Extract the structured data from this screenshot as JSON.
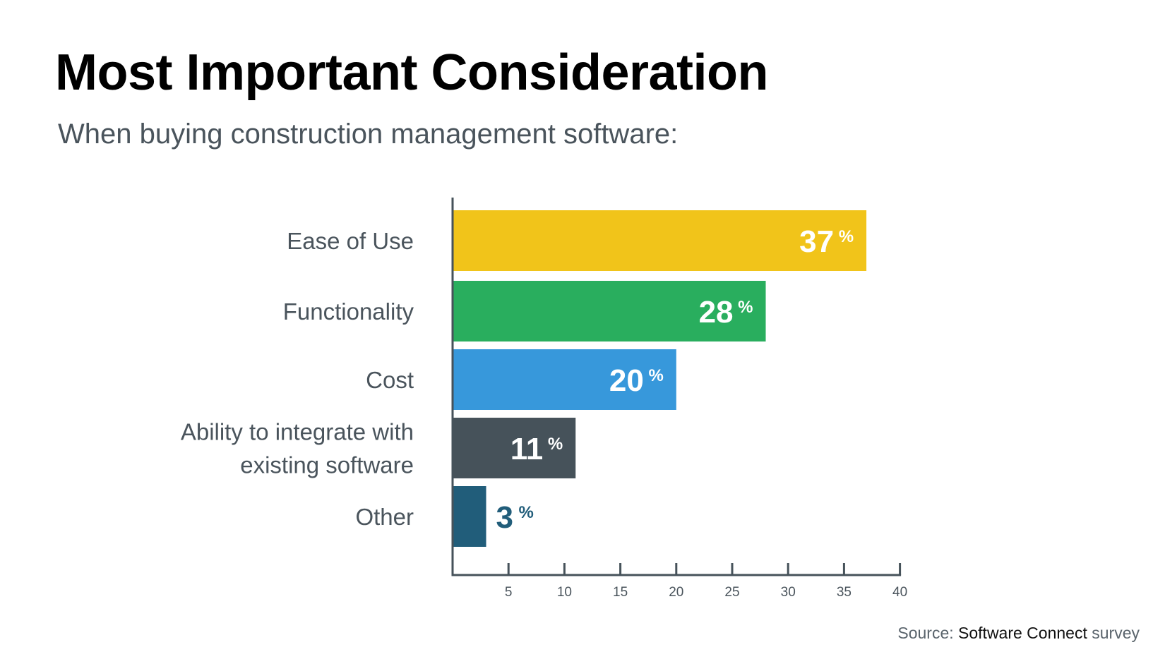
{
  "title": "Most Important Consideration",
  "subtitle": "When buying construction management software:",
  "source": {
    "prefix": "Source:",
    "name": "Software Connect",
    "suffix": "survey"
  },
  "chart_data": {
    "type": "bar",
    "orientation": "horizontal",
    "categories": [
      [
        "Ease of Use"
      ],
      [
        "Functionality"
      ],
      [
        "Cost"
      ],
      [
        "Ability to integrate with",
        "existing software"
      ],
      [
        "Other"
      ]
    ],
    "values": [
      37,
      28,
      20,
      11,
      3
    ],
    "value_suffix": "%",
    "colors": [
      "#f1c41a",
      "#29ae5e",
      "#3798db",
      "#46525a",
      "#215d7a"
    ],
    "label_colors": [
      "#ffffff",
      "#ffffff",
      "#ffffff",
      "#ffffff",
      "#215d7a"
    ],
    "xlim": [
      0,
      40
    ],
    "x_ticks": [
      5,
      10,
      15,
      20,
      25,
      30,
      35,
      40
    ],
    "grid": false,
    "axis_color": "#46525a"
  }
}
